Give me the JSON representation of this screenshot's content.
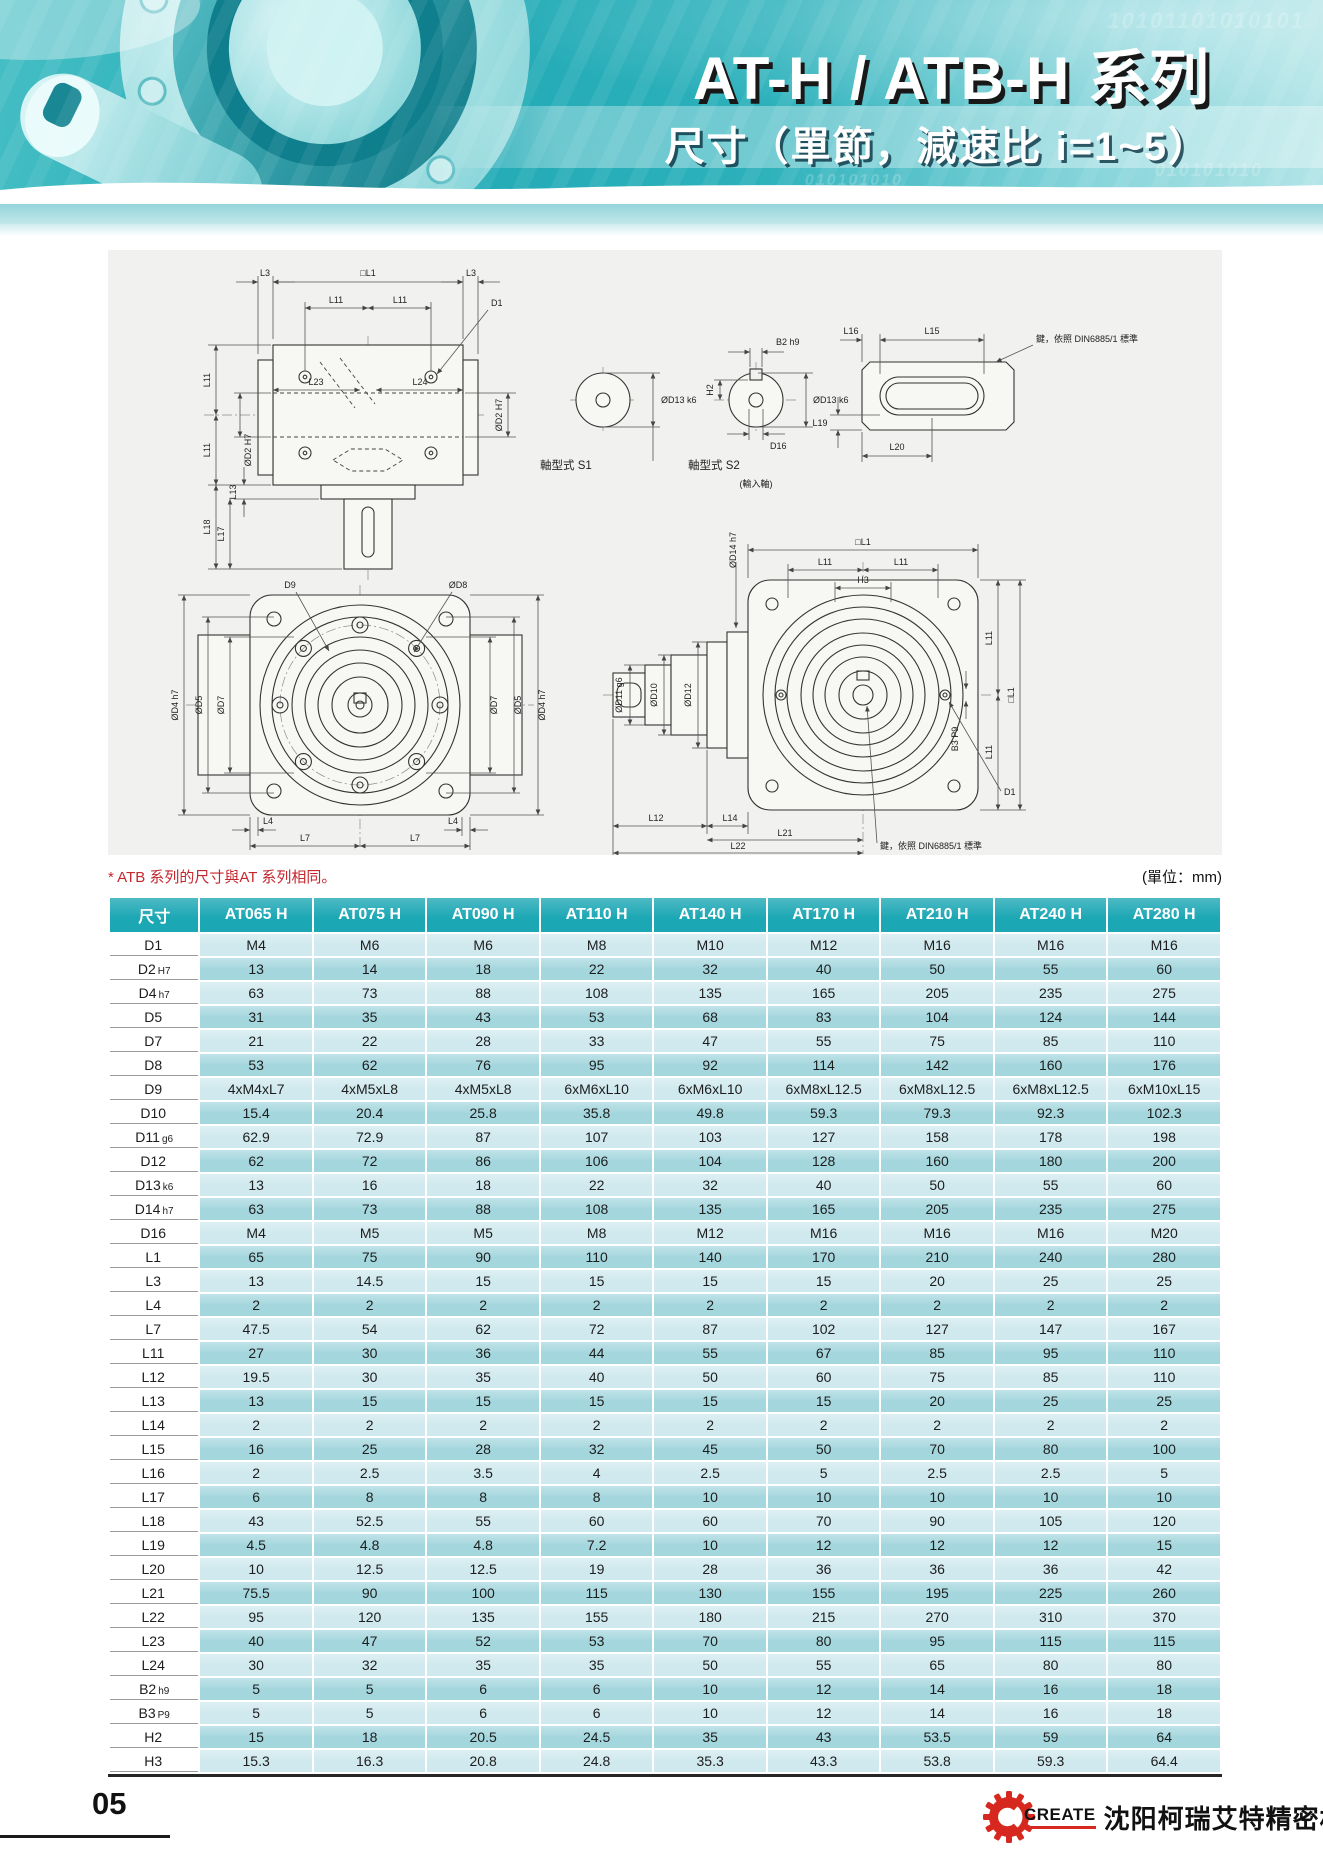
{
  "header": {
    "title": "AT-H / ATB-H 系列",
    "subtitle": "尺寸（單節，減速比 i=1~5）",
    "binary_pattern": "10101101010101",
    "binary_pattern2": "010101010"
  },
  "note": {
    "atb": "* ATB 系列的尺寸與AT 系列相同。",
    "unit": "(單位：mm)"
  },
  "drawings": {
    "top_view": {
      "l3": "L3",
      "l1": "□L1",
      "l11": "L11",
      "d1": "D1",
      "l23": "L23",
      "l24": "L24",
      "d2": "ØD2 H7",
      "l13": "L13",
      "l17": "L17",
      "l18": "L18"
    },
    "shafts": {
      "s1": "軸型式 S1",
      "s2": "軸型式 S2",
      "d13": "ØD13 k6",
      "b2": "B2 h9",
      "h2": "H2",
      "d16": "D16",
      "input": "(輸入軸)"
    },
    "key_detail": {
      "l15": "L15",
      "l16": "L16",
      "l19": "L19",
      "l20": "L20",
      "note": "鍵，依照 DIN6885/1 標準"
    },
    "front_view": {
      "d9": "D9",
      "d8": "ØD8",
      "d4": "ØD4 h7",
      "d5": "ØD5",
      "d7": "ØD7",
      "l4": "L4",
      "l7": "L7"
    },
    "side_view": {
      "l1": "□L1",
      "l11": "L11",
      "h3": "H3",
      "d14": "ØD14 h7",
      "d12": "ØD12",
      "d10": "ØD10",
      "d11": "ØD11 g6",
      "b3": "B3 P9",
      "d1": "D1",
      "l12": "L12",
      "l14": "L14",
      "l21": "L21",
      "l22": "L22",
      "note": "鍵，依照 DIN6885/1 標準"
    }
  },
  "table": {
    "columns": [
      "尺寸",
      "AT065 H",
      "AT075 H",
      "AT090 H",
      "AT110 H",
      "AT140 H",
      "AT170 H",
      "AT210 H",
      "AT240 H",
      "AT280 H"
    ],
    "rows": [
      {
        "label": "D1",
        "sub": "",
        "values": [
          "M4",
          "M6",
          "M6",
          "M8",
          "M10",
          "M12",
          "M16",
          "M16",
          "M16"
        ]
      },
      {
        "label": "D2",
        "sub": "H7",
        "values": [
          "13",
          "14",
          "18",
          "22",
          "32",
          "40",
          "50",
          "55",
          "60"
        ]
      },
      {
        "label": "D4",
        "sub": "h7",
        "values": [
          "63",
          "73",
          "88",
          "108",
          "135",
          "165",
          "205",
          "235",
          "275"
        ]
      },
      {
        "label": "D5",
        "sub": "",
        "values": [
          "31",
          "35",
          "43",
          "53",
          "68",
          "83",
          "104",
          "124",
          "144"
        ]
      },
      {
        "label": "D7",
        "sub": "",
        "values": [
          "21",
          "22",
          "28",
          "33",
          "47",
          "55",
          "75",
          "85",
          "110"
        ]
      },
      {
        "label": "D8",
        "sub": "",
        "values": [
          "53",
          "62",
          "76",
          "95",
          "92",
          "114",
          "142",
          "160",
          "176"
        ]
      },
      {
        "label": "D9",
        "sub": "",
        "values": [
          "4xM4xL7",
          "4xM5xL8",
          "4xM5xL8",
          "6xM6xL10",
          "6xM6xL10",
          "6xM8xL12.5",
          "6xM8xL12.5",
          "6xM8xL12.5",
          "6xM10xL15"
        ]
      },
      {
        "label": "D10",
        "sub": "",
        "values": [
          "15.4",
          "20.4",
          "25.8",
          "35.8",
          "49.8",
          "59.3",
          "79.3",
          "92.3",
          "102.3"
        ]
      },
      {
        "label": "D11",
        "sub": "g6",
        "values": [
          "62.9",
          "72.9",
          "87",
          "107",
          "103",
          "127",
          "158",
          "178",
          "198"
        ]
      },
      {
        "label": "D12",
        "sub": "",
        "values": [
          "62",
          "72",
          "86",
          "106",
          "104",
          "128",
          "160",
          "180",
          "200"
        ]
      },
      {
        "label": "D13",
        "sub": "k6",
        "values": [
          "13",
          "16",
          "18",
          "22",
          "32",
          "40",
          "50",
          "55",
          "60"
        ]
      },
      {
        "label": "D14",
        "sub": "h7",
        "values": [
          "63",
          "73",
          "88",
          "108",
          "135",
          "165",
          "205",
          "235",
          "275"
        ]
      },
      {
        "label": "D16",
        "sub": "",
        "values": [
          "M4",
          "M5",
          "M5",
          "M8",
          "M12",
          "M16",
          "M16",
          "M16",
          "M20"
        ]
      },
      {
        "label": "L1",
        "sub": "",
        "values": [
          "65",
          "75",
          "90",
          "110",
          "140",
          "170",
          "210",
          "240",
          "280"
        ]
      },
      {
        "label": "L3",
        "sub": "",
        "values": [
          "13",
          "14.5",
          "15",
          "15",
          "15",
          "15",
          "20",
          "25",
          "25"
        ]
      },
      {
        "label": "L4",
        "sub": "",
        "values": [
          "2",
          "2",
          "2",
          "2",
          "2",
          "2",
          "2",
          "2",
          "2"
        ]
      },
      {
        "label": "L7",
        "sub": "",
        "values": [
          "47.5",
          "54",
          "62",
          "72",
          "87",
          "102",
          "127",
          "147",
          "167"
        ]
      },
      {
        "label": "L11",
        "sub": "",
        "values": [
          "27",
          "30",
          "36",
          "44",
          "55",
          "67",
          "85",
          "95",
          "110"
        ]
      },
      {
        "label": "L12",
        "sub": "",
        "values": [
          "19.5",
          "30",
          "35",
          "40",
          "50",
          "60",
          "75",
          "85",
          "110"
        ]
      },
      {
        "label": "L13",
        "sub": "",
        "values": [
          "13",
          "15",
          "15",
          "15",
          "15",
          "15",
          "20",
          "25",
          "25"
        ]
      },
      {
        "label": "L14",
        "sub": "",
        "values": [
          "2",
          "2",
          "2",
          "2",
          "2",
          "2",
          "2",
          "2",
          "2"
        ]
      },
      {
        "label": "L15",
        "sub": "",
        "values": [
          "16",
          "25",
          "28",
          "32",
          "45",
          "50",
          "70",
          "80",
          "100"
        ]
      },
      {
        "label": "L16",
        "sub": "",
        "values": [
          "2",
          "2.5",
          "3.5",
          "4",
          "2.5",
          "5",
          "2.5",
          "2.5",
          "5"
        ]
      },
      {
        "label": "L17",
        "sub": "",
        "values": [
          "6",
          "8",
          "8",
          "8",
          "10",
          "10",
          "10",
          "10",
          "10"
        ]
      },
      {
        "label": "L18",
        "sub": "",
        "values": [
          "43",
          "52.5",
          "55",
          "60",
          "60",
          "70",
          "90",
          "105",
          "120"
        ]
      },
      {
        "label": "L19",
        "sub": "",
        "values": [
          "4.5",
          "4.8",
          "4.8",
          "7.2",
          "10",
          "12",
          "12",
          "12",
          "15"
        ]
      },
      {
        "label": "L20",
        "sub": "",
        "values": [
          "10",
          "12.5",
          "12.5",
          "19",
          "28",
          "36",
          "36",
          "36",
          "42"
        ]
      },
      {
        "label": "L21",
        "sub": "",
        "values": [
          "75.5",
          "90",
          "100",
          "115",
          "130",
          "155",
          "195",
          "225",
          "260"
        ]
      },
      {
        "label": "L22",
        "sub": "",
        "values": [
          "95",
          "120",
          "135",
          "155",
          "180",
          "215",
          "270",
          "310",
          "370"
        ]
      },
      {
        "label": "L23",
        "sub": "",
        "values": [
          "40",
          "47",
          "52",
          "53",
          "70",
          "80",
          "95",
          "115",
          "115"
        ]
      },
      {
        "label": "L24",
        "sub": "",
        "values": [
          "30",
          "32",
          "35",
          "35",
          "50",
          "55",
          "65",
          "80",
          "80"
        ]
      },
      {
        "label": "B2",
        "sub": "h9",
        "values": [
          "5",
          "5",
          "6",
          "6",
          "10",
          "12",
          "14",
          "16",
          "18"
        ]
      },
      {
        "label": "B3",
        "sub": "P9",
        "values": [
          "5",
          "5",
          "6",
          "6",
          "10",
          "12",
          "14",
          "16",
          "18"
        ]
      },
      {
        "label": "H2",
        "sub": "",
        "values": [
          "15",
          "18",
          "20.5",
          "24.5",
          "35",
          "43",
          "53.5",
          "59",
          "64"
        ]
      },
      {
        "label": "H3",
        "sub": "",
        "values": [
          "15.3",
          "16.3",
          "20.8",
          "24.8",
          "35.3",
          "43.3",
          "53.8",
          "59.3",
          "64.4"
        ]
      }
    ]
  },
  "footer": {
    "page": "05",
    "logo_text": "CREATE",
    "company": "沈阳柯瑞艾特精密机械有限公司"
  },
  "colors": {
    "teal_header": "#1ba7b4",
    "row_light": "#cfe9ee",
    "row_dark": "#a3d6dd",
    "note_red": "#c4272e",
    "logo_red": "#d6281e"
  }
}
